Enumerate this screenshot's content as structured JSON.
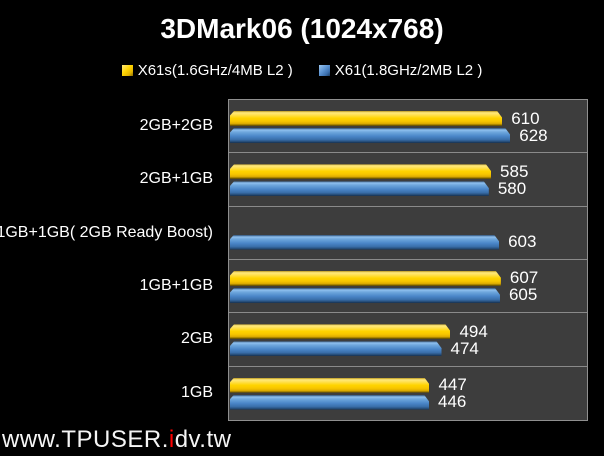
{
  "title": "3DMark06 (1024x768)",
  "chart_data": {
    "type": "bar",
    "orientation": "horizontal",
    "title": "3DMark06 (1024x768)",
    "categories": [
      "2GB+2GB",
      "2GB+1GB",
      "1GB+1GB( 2GB Ready Boost)",
      "1GB+1GB",
      "2GB",
      "1GB"
    ],
    "series": [
      {
        "name": "X61s(1.6GHz/4MB L2 )",
        "color": "#ffd400",
        "values": [
          610,
          585,
          null,
          607,
          494,
          447
        ]
      },
      {
        "name": "X61(1.8GHz/2MB L2 )",
        "color": "#4a86c8",
        "values": [
          628,
          580,
          603,
          605,
          474,
          446
        ]
      }
    ],
    "xlim": [
      0,
      800
    ],
    "value_labels": true,
    "grid": "horizontal category separators",
    "legend_position": "top-center",
    "plot_background": "#3d3d3d",
    "page_background": "#000000",
    "gridline_color": "#8a8a8a",
    "text_color": "#ffffff"
  },
  "watermark": {
    "prefix": "www.TPUSER.",
    "accent": "i",
    "suffix": "dv.tw",
    "accent_color": "#ff0000",
    "text_color": "#f5f5f5"
  }
}
